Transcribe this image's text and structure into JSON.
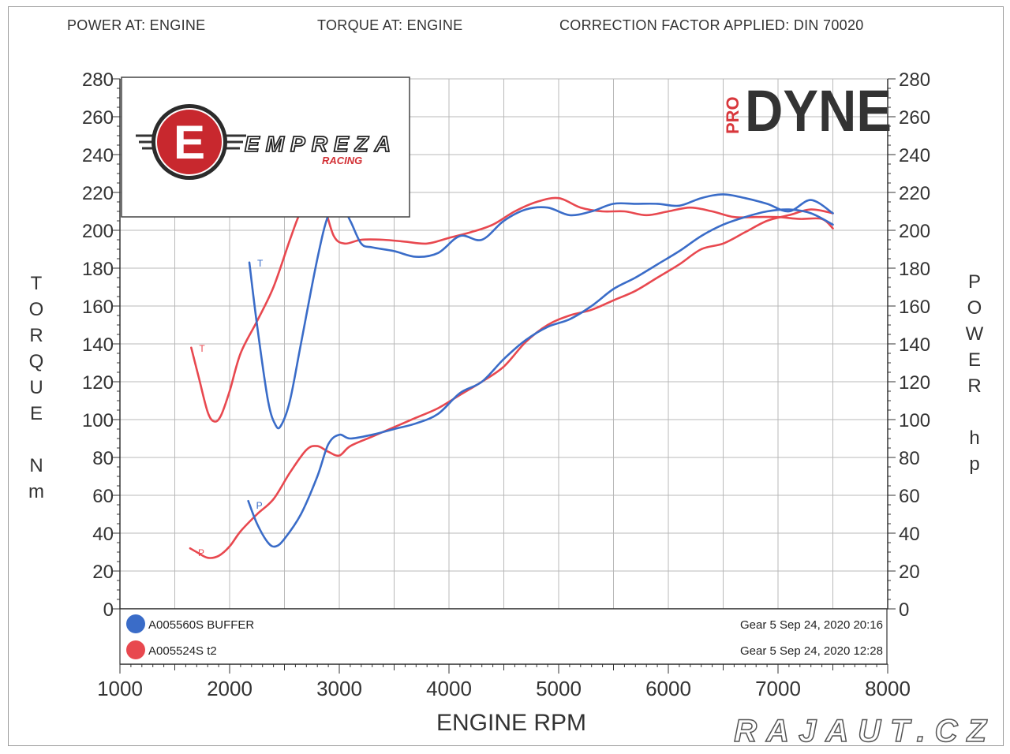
{
  "header": {
    "power_at": "POWER AT: ENGINE",
    "torque_at": "TORQUE AT: ENGINE",
    "correction": "CORRECTION FACTOR APPLIED: DIN 70020"
  },
  "left_axis_label": [
    "T",
    "O",
    "R",
    "Q",
    "U",
    "E",
    "",
    "N",
    "m"
  ],
  "right_axis_label": [
    "P",
    "O",
    "W",
    "E",
    "R",
    "",
    "h",
    "p"
  ],
  "logo_left": {
    "name": "EMPREZA",
    "sub": "RACING",
    "letter": "E"
  },
  "logo_right": {
    "pro": "PRO",
    "name": "DYNE"
  },
  "watermark": "RAJAUT.CZ",
  "legend": [
    {
      "name": "A005560S BUFFER",
      "info": "Gear 5 Sep 24, 2020 20:16",
      "color": "#3a6cc8"
    },
    {
      "name": "A005524S t2",
      "info": "Gear 5 Sep 24, 2020 12:28",
      "color": "#e8484f"
    }
  ],
  "curve_markers": {
    "torque": "T",
    "power": "P"
  },
  "chart_data": {
    "type": "line",
    "xlabel": "ENGINE RPM",
    "ylabel_left": "TORQUE Nm",
    "ylabel_right": "POWER hp",
    "xlim": [
      1000,
      8000
    ],
    "ylim": [
      0,
      280
    ],
    "y2lim": [
      0,
      280
    ],
    "x_ticks": [
      1000,
      2000,
      3000,
      4000,
      5000,
      6000,
      7000,
      8000
    ],
    "y_ticks": [
      0,
      20,
      40,
      60,
      80,
      100,
      120,
      140,
      160,
      180,
      200,
      220,
      240,
      260,
      280
    ],
    "grid": true,
    "series": [
      {
        "name": "A005560S BUFFER",
        "quantity": "torque",
        "color": "#3a6cc8",
        "x": [
          2180,
          2250,
          2350,
          2420,
          2470,
          2550,
          2650,
          2800,
          2900,
          3000,
          3100,
          3200,
          3300,
          3500,
          3700,
          3900,
          4100,
          4300,
          4500,
          4700,
          4900,
          5100,
          5300,
          5500,
          5700,
          5900,
          6100,
          6300,
          6500,
          6700,
          6900,
          7100,
          7300,
          7500
        ],
        "y": [
          183,
          150,
          110,
          97,
          97,
          110,
          140,
          185,
          208,
          215,
          205,
          193,
          191,
          189,
          186,
          188,
          197,
          195,
          205,
          211,
          212,
          208,
          210,
          214,
          214,
          214,
          213,
          217,
          219,
          217,
          214,
          210,
          216,
          209
        ]
      },
      {
        "name": "A005560S BUFFER",
        "quantity": "power",
        "color": "#3a6cc8",
        "x": [
          2170,
          2250,
          2350,
          2420,
          2500,
          2650,
          2800,
          2900,
          3000,
          3100,
          3300,
          3500,
          3700,
          3900,
          4100,
          4300,
          4500,
          4700,
          4900,
          5100,
          5300,
          5500,
          5700,
          5900,
          6100,
          6300,
          6500,
          6700,
          6900,
          7100,
          7300,
          7500
        ],
        "y": [
          57,
          45,
          35,
          33,
          37,
          50,
          70,
          87,
          92,
          90,
          92,
          95,
          98,
          103,
          114,
          120,
          132,
          142,
          149,
          153,
          160,
          169,
          175,
          182,
          189,
          197,
          203,
          207,
          210,
          211,
          209,
          203
        ]
      },
      {
        "name": "A005524S t2",
        "quantity": "torque",
        "color": "#e8484f",
        "x": [
          1650,
          1720,
          1800,
          1860,
          1920,
          2000,
          2100,
          2250,
          2400,
          2550,
          2650,
          2750,
          2850,
          2950,
          3050,
          3200,
          3400,
          3600,
          3800,
          4000,
          4200,
          4400,
          4600,
          4800,
          5000,
          5200,
          5400,
          5600,
          5800,
          6000,
          6200,
          6400,
          6600,
          6800,
          7000,
          7200,
          7400,
          7500
        ],
        "y": [
          138,
          122,
          104,
          99,
          102,
          115,
          135,
          152,
          170,
          195,
          210,
          216,
          214,
          197,
          193,
          195,
          195,
          194,
          193,
          196,
          199,
          203,
          210,
          215,
          217,
          212,
          210,
          210,
          208,
          210,
          212,
          210,
          207,
          207,
          207,
          206,
          206,
          201
        ]
      },
      {
        "name": "A005524S t2",
        "quantity": "power",
        "color": "#e8484f",
        "x": [
          1640,
          1700,
          1800,
          1900,
          2000,
          2100,
          2250,
          2400,
          2550,
          2700,
          2800,
          2900,
          3000,
          3100,
          3300,
          3500,
          3700,
          3900,
          4100,
          4300,
          4500,
          4700,
          4900,
          5100,
          5300,
          5500,
          5700,
          5900,
          6100,
          6300,
          6500,
          6700,
          6900,
          7100,
          7300,
          7500
        ],
        "y": [
          32,
          30,
          27,
          28,
          33,
          41,
          50,
          58,
          72,
          84,
          86,
          83,
          81,
          86,
          91,
          96,
          101,
          106,
          113,
          120,
          128,
          141,
          150,
          155,
          158,
          163,
          168,
          175,
          182,
          190,
          193,
          199,
          205,
          208,
          211,
          209
        ]
      }
    ]
  }
}
